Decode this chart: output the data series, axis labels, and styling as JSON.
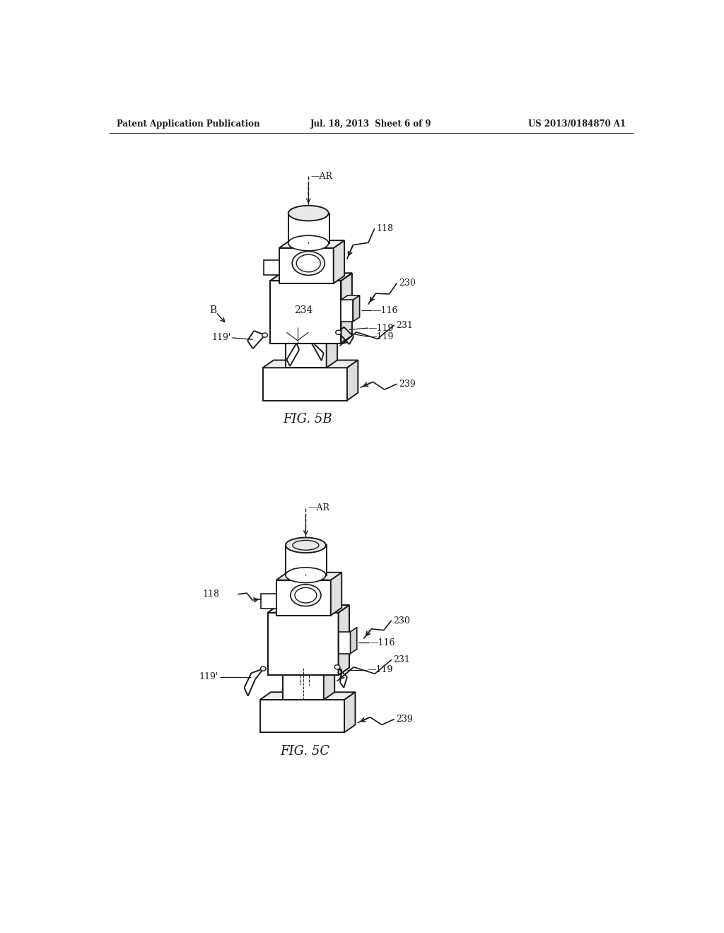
{
  "background_color": "#ffffff",
  "line_color": "#1a1a1a",
  "header": {
    "left": "Patent Application Publication",
    "center": "Jul. 18, 2013  Sheet 6 of 9",
    "right": "US 2013/0184870 A1"
  },
  "fig5b_label": "FIG. 5B",
  "fig5c_label": "FIG. 5C"
}
